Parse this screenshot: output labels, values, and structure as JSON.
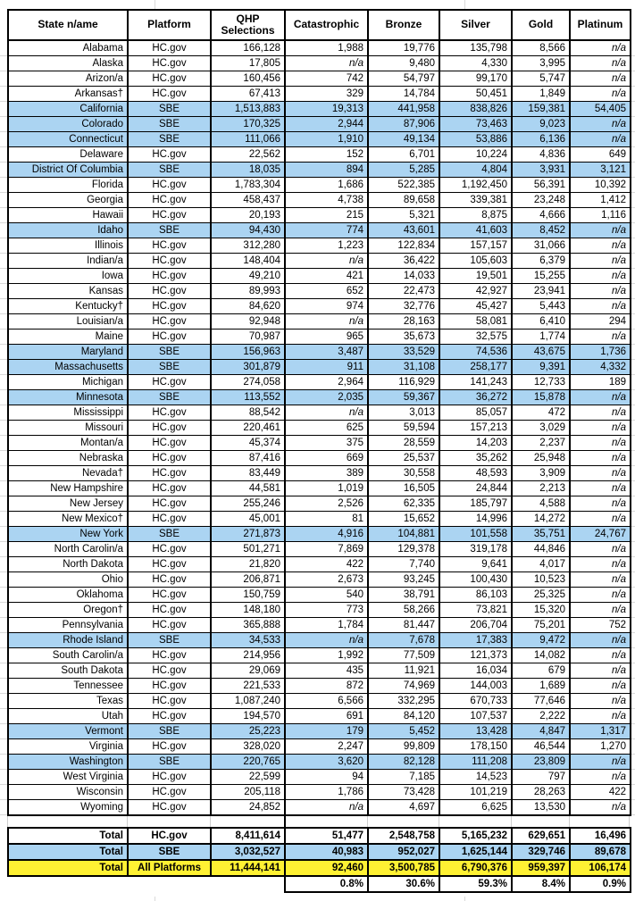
{
  "table": {
    "columns": [
      "State n/ame",
      "Platform",
      "QHP Selections",
      "Catastrophic",
      "Bronze",
      "Silver",
      "Gold",
      "Platinum"
    ],
    "rows": [
      [
        "Alabama",
        "HC.gov",
        "166,128",
        "1,988",
        "19,776",
        "135,798",
        "8,566",
        "n/a"
      ],
      [
        "Alaska",
        "HC.gov",
        "17,805",
        "n/a",
        "9,480",
        "4,330",
        "3,995",
        "n/a"
      ],
      [
        "Arizon/a",
        "HC.gov",
        "160,456",
        "742",
        "54,797",
        "99,170",
        "5,747",
        "n/a"
      ],
      [
        "Arkansas†",
        "HC.gov",
        "67,413",
        "329",
        "14,784",
        "50,451",
        "1,849",
        "n/a"
      ],
      [
        "California",
        "SBE",
        "1,513,883",
        "19,313",
        "441,958",
        "838,826",
        "159,381",
        "54,405"
      ],
      [
        "Colorado",
        "SBE",
        "170,325",
        "2,944",
        "87,906",
        "73,463",
        "9,023",
        "n/a"
      ],
      [
        "Connecticut",
        "SBE",
        "111,066",
        "1,910",
        "49,134",
        "53,886",
        "6,136",
        "n/a"
      ],
      [
        "Delaware",
        "HC.gov",
        "22,562",
        "152",
        "6,701",
        "10,224",
        "4,836",
        "649"
      ],
      [
        "District Of Columbia",
        "SBE",
        "18,035",
        "894",
        "5,285",
        "4,804",
        "3,931",
        "3,121"
      ],
      [
        "Florida",
        "HC.gov",
        "1,783,304",
        "1,686",
        "522,385",
        "1,192,450",
        "56,391",
        "10,392"
      ],
      [
        "Georgia",
        "HC.gov",
        "458,437",
        "4,738",
        "89,658",
        "339,381",
        "23,248",
        "1,412"
      ],
      [
        "Hawaii",
        "HC.gov",
        "20,193",
        "215",
        "5,321",
        "8,875",
        "4,666",
        "1,116"
      ],
      [
        "Idaho",
        "SBE",
        "94,430",
        "774",
        "43,601",
        "41,603",
        "8,452",
        "n/a"
      ],
      [
        "Illinois",
        "HC.gov",
        "312,280",
        "1,223",
        "122,834",
        "157,157",
        "31,066",
        "n/a"
      ],
      [
        "Indian/a",
        "HC.gov",
        "148,404",
        "n/a",
        "36,422",
        "105,603",
        "6,379",
        "n/a"
      ],
      [
        "Iowa",
        "HC.gov",
        "49,210",
        "421",
        "14,033",
        "19,501",
        "15,255",
        "n/a"
      ],
      [
        "Kansas",
        "HC.gov",
        "89,993",
        "652",
        "22,473",
        "42,927",
        "23,941",
        "n/a"
      ],
      [
        "Kentucky†",
        "HC.gov",
        "84,620",
        "974",
        "32,776",
        "45,427",
        "5,443",
        "n/a"
      ],
      [
        "Louisian/a",
        "HC.gov",
        "92,948",
        "n/a",
        "28,163",
        "58,081",
        "6,410",
        "294"
      ],
      [
        "Maine",
        "HC.gov",
        "70,987",
        "965",
        "35,673",
        "32,575",
        "1,774",
        "n/a"
      ],
      [
        "Maryland",
        "SBE",
        "156,963",
        "3,487",
        "33,529",
        "74,536",
        "43,675",
        "1,736"
      ],
      [
        "Massachusetts",
        "SBE",
        "301,879",
        "911",
        "31,108",
        "258,177",
        "9,391",
        "4,332"
      ],
      [
        "Michigan",
        "HC.gov",
        "274,058",
        "2,964",
        "116,929",
        "141,243",
        "12,733",
        "189"
      ],
      [
        "Minnesota",
        "SBE",
        "113,552",
        "2,035",
        "59,367",
        "36,272",
        "15,878",
        "n/a"
      ],
      [
        "Mississippi",
        "HC.gov",
        "88,542",
        "n/a",
        "3,013",
        "85,057",
        "472",
        "n/a"
      ],
      [
        "Missouri",
        "HC.gov",
        "220,461",
        "625",
        "59,594",
        "157,213",
        "3,029",
        "n/a"
      ],
      [
        "Montan/a",
        "HC.gov",
        "45,374",
        "375",
        "28,559",
        "14,203",
        "2,237",
        "n/a"
      ],
      [
        "Nebraska",
        "HC.gov",
        "87,416",
        "669",
        "25,537",
        "35,262",
        "25,948",
        "n/a"
      ],
      [
        "Nevada†",
        "HC.gov",
        "83,449",
        "389",
        "30,558",
        "48,593",
        "3,909",
        "n/a"
      ],
      [
        "New Hampshire",
        "HC.gov",
        "44,581",
        "1,019",
        "16,505",
        "24,844",
        "2,213",
        "n/a"
      ],
      [
        "New Jersey",
        "HC.gov",
        "255,246",
        "2,526",
        "62,335",
        "185,797",
        "4,588",
        "n/a"
      ],
      [
        "New Mexico†",
        "HC.gov",
        "45,001",
        "81",
        "15,652",
        "14,996",
        "14,272",
        "n/a"
      ],
      [
        "New York",
        "SBE",
        "271,873",
        "4,916",
        "104,881",
        "101,558",
        "35,751",
        "24,767"
      ],
      [
        "North Carolin/a",
        "HC.gov",
        "501,271",
        "7,869",
        "129,378",
        "319,178",
        "44,846",
        "n/a"
      ],
      [
        "North Dakota",
        "HC.gov",
        "21,820",
        "422",
        "7,740",
        "9,641",
        "4,017",
        "n/a"
      ],
      [
        "Ohio",
        "HC.gov",
        "206,871",
        "2,673",
        "93,245",
        "100,430",
        "10,523",
        "n/a"
      ],
      [
        "Oklahoma",
        "HC.gov",
        "150,759",
        "540",
        "38,791",
        "86,103",
        "25,325",
        "n/a"
      ],
      [
        "Oregon†",
        "HC.gov",
        "148,180",
        "773",
        "58,266",
        "73,821",
        "15,320",
        "n/a"
      ],
      [
        "Pennsylvania",
        "HC.gov",
        "365,888",
        "1,784",
        "81,447",
        "206,704",
        "75,201",
        "752"
      ],
      [
        "Rhode Island",
        "SBE",
        "34,533",
        "n/a",
        "7,678",
        "17,383",
        "9,472",
        "n/a"
      ],
      [
        "South Carolin/a",
        "HC.gov",
        "214,956",
        "1,992",
        "77,509",
        "121,373",
        "14,082",
        "n/a"
      ],
      [
        "South Dakota",
        "HC.gov",
        "29,069",
        "435",
        "11,921",
        "16,034",
        "679",
        "n/a"
      ],
      [
        "Tennessee",
        "HC.gov",
        "221,533",
        "872",
        "74,969",
        "144,003",
        "1,689",
        "n/a"
      ],
      [
        "Texas",
        "HC.gov",
        "1,087,240",
        "6,566",
        "332,295",
        "670,733",
        "77,646",
        "n/a"
      ],
      [
        "Utah",
        "HC.gov",
        "194,570",
        "691",
        "84,120",
        "107,537",
        "2,222",
        "n/a"
      ],
      [
        "Vermont",
        "SBE",
        "25,223",
        "179",
        "5,452",
        "13,428",
        "4,847",
        "1,317"
      ],
      [
        "Virginia",
        "HC.gov",
        "328,020",
        "2,247",
        "99,809",
        "178,150",
        "46,544",
        "1,270"
      ],
      [
        "Washington",
        "SBE",
        "220,765",
        "3,620",
        "82,128",
        "111,208",
        "23,809",
        "n/a"
      ],
      [
        "West Virginia",
        "HC.gov",
        "22,599",
        "94",
        "7,185",
        "14,523",
        "797",
        "n/a"
      ],
      [
        "Wisconsin",
        "HC.gov",
        "205,118",
        "1,786",
        "73,428",
        "101,219",
        "28,263",
        "422"
      ],
      [
        "Wyoming",
        "HC.gov",
        "24,852",
        "n/a",
        "4,697",
        "6,625",
        "13,530",
        "n/a"
      ]
    ],
    "totals": [
      [
        "Total",
        "HC.gov",
        "8,411,614",
        "51,477",
        "2,548,758",
        "5,165,232",
        "629,651",
        "16,496"
      ],
      [
        "Total",
        "SBE",
        "3,032,527",
        "40,983",
        "952,027",
        "1,625,144",
        "329,746",
        "89,678"
      ],
      [
        "Total",
        "All Platforms",
        "11,444,141",
        "92,460",
        "3,500,785",
        "6,790,376",
        "959,397",
        "106,174"
      ]
    ],
    "percent_row": [
      "0.8%",
      "30.6%",
      "59.3%",
      "8.4%",
      "0.9%"
    ],
    "colors": {
      "sbe_highlight": "#ABD4F2",
      "all_platforms_highlight": "#FFF133",
      "border": "#000000",
      "faint_gridline": "#D9D9D9"
    }
  }
}
